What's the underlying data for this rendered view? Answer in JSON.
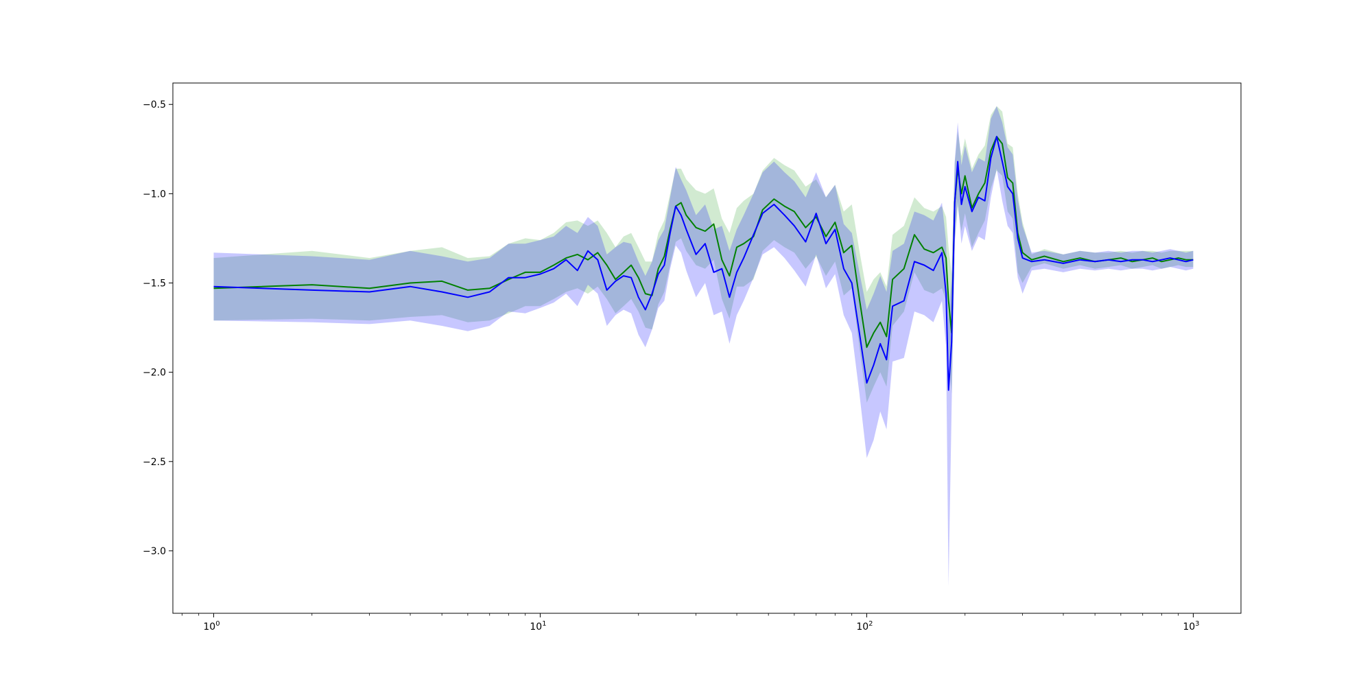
{
  "chart_data": {
    "type": "line",
    "title": "",
    "xlabel": "",
    "ylabel": "",
    "x_scale": "log",
    "xlim": [
      0.75,
      1400
    ],
    "ylim": [
      -3.35,
      -0.38
    ],
    "grid": false,
    "x_ticks": [
      {
        "value": 1,
        "base": "10",
        "exp": "0"
      },
      {
        "value": 10,
        "base": "10",
        "exp": "1"
      },
      {
        "value": 100,
        "base": "10",
        "exp": "2"
      },
      {
        "value": 1000,
        "base": "10",
        "exp": "3"
      }
    ],
    "y_ticks": [
      {
        "value": -0.5,
        "label": "−0.5"
      },
      {
        "value": -1.0,
        "label": "−1.0"
      },
      {
        "value": -1.5,
        "label": "−1.5"
      },
      {
        "value": -2.0,
        "label": "−2.0"
      },
      {
        "value": -2.5,
        "label": "−2.5"
      },
      {
        "value": -3.0,
        "label": "−3.0"
      }
    ],
    "x": [
      1,
      2,
      3,
      4,
      5,
      6,
      7,
      8,
      9,
      10,
      11,
      12,
      13,
      14,
      15,
      16,
      17,
      18,
      19,
      20,
      21,
      22,
      23,
      24,
      25,
      26,
      27,
      28,
      30,
      32,
      34,
      36,
      38,
      40,
      42,
      45,
      48,
      52,
      56,
      60,
      65,
      70,
      75,
      80,
      85,
      90,
      95,
      100,
      105,
      110,
      115,
      120,
      130,
      140,
      150,
      160,
      170,
      175,
      178,
      182,
      186,
      190,
      195,
      200,
      210,
      220,
      230,
      240,
      250,
      260,
      270,
      280,
      290,
      300,
      320,
      350,
      400,
      450,
      500,
      550,
      600,
      650,
      700,
      750,
      800,
      850,
      900,
      950,
      1000
    ],
    "series": [
      {
        "color": "#008000",
        "band_color": "#2ca02c",
        "values": [
          -1.53,
          -1.51,
          -1.53,
          -1.5,
          -1.49,
          -1.54,
          -1.53,
          -1.48,
          -1.44,
          -1.44,
          -1.4,
          -1.36,
          -1.34,
          -1.37,
          -1.33,
          -1.4,
          -1.48,
          -1.44,
          -1.4,
          -1.47,
          -1.56,
          -1.57,
          -1.42,
          -1.35,
          -1.2,
          -1.07,
          -1.05,
          -1.12,
          -1.19,
          -1.21,
          -1.17,
          -1.37,
          -1.46,
          -1.3,
          -1.28,
          -1.24,
          -1.09,
          -1.03,
          -1.07,
          -1.1,
          -1.19,
          -1.13,
          -1.24,
          -1.16,
          -1.33,
          -1.29,
          -1.59,
          -1.86,
          -1.78,
          -1.72,
          -1.8,
          -1.48,
          -1.42,
          -1.23,
          -1.31,
          -1.33,
          -1.3,
          -1.36,
          -1.6,
          -1.78,
          -1.05,
          -0.86,
          -1.0,
          -0.9,
          -1.08,
          -1.0,
          -0.94,
          -0.76,
          -0.68,
          -0.72,
          -0.91,
          -0.94,
          -1.22,
          -1.33,
          -1.37,
          -1.35,
          -1.38,
          -1.36,
          -1.38,
          -1.37,
          -1.36,
          -1.38,
          -1.37,
          -1.36,
          -1.38,
          -1.37,
          -1.36,
          -1.37,
          -1.37
        ],
        "upper": [
          -1.36,
          -1.32,
          -1.36,
          -1.32,
          -1.3,
          -1.36,
          -1.35,
          -1.28,
          -1.25,
          -1.26,
          -1.22,
          -1.16,
          -1.15,
          -1.18,
          -1.15,
          -1.22,
          -1.3,
          -1.24,
          -1.22,
          -1.3,
          -1.38,
          -1.38,
          -1.22,
          -1.15,
          -1.0,
          -0.86,
          -0.86,
          -0.92,
          -0.98,
          -1.0,
          -0.97,
          -1.14,
          -1.22,
          -1.08,
          -1.04,
          -1.0,
          -0.87,
          -0.8,
          -0.84,
          -0.87,
          -0.96,
          -0.92,
          -1.02,
          -0.95,
          -1.1,
          -1.06,
          -1.32,
          -1.55,
          -1.48,
          -1.44,
          -1.52,
          -1.23,
          -1.18,
          -1.02,
          -1.08,
          -1.1,
          -1.07,
          -1.13,
          -1.3,
          -1.45,
          -0.83,
          -0.65,
          -0.79,
          -0.69,
          -0.86,
          -0.78,
          -0.73,
          -0.56,
          -0.51,
          -0.54,
          -0.72,
          -0.74,
          -1.0,
          -1.16,
          -1.34,
          -1.31,
          -1.34,
          -1.32,
          -1.33,
          -1.33,
          -1.32,
          -1.33,
          -1.32,
          -1.32,
          -1.33,
          -1.32,
          -1.32,
          -1.32,
          -1.32
        ],
        "lower": [
          -1.71,
          -1.7,
          -1.71,
          -1.69,
          -1.68,
          -1.72,
          -1.71,
          -1.67,
          -1.63,
          -1.63,
          -1.59,
          -1.55,
          -1.53,
          -1.56,
          -1.52,
          -1.59,
          -1.67,
          -1.63,
          -1.59,
          -1.66,
          -1.75,
          -1.76,
          -1.62,
          -1.55,
          -1.4,
          -1.27,
          -1.25,
          -1.32,
          -1.4,
          -1.42,
          -1.37,
          -1.59,
          -1.7,
          -1.52,
          -1.52,
          -1.48,
          -1.32,
          -1.26,
          -1.3,
          -1.33,
          -1.42,
          -1.35,
          -1.46,
          -1.38,
          -1.57,
          -1.53,
          -1.86,
          -2.17,
          -2.08,
          -2.0,
          -2.08,
          -1.74,
          -1.66,
          -1.44,
          -1.54,
          -1.56,
          -1.53,
          -1.6,
          -1.9,
          -2.12,
          -1.27,
          -1.07,
          -1.21,
          -1.11,
          -1.3,
          -1.22,
          -1.15,
          -0.97,
          -0.87,
          -0.9,
          -1.1,
          -1.14,
          -1.44,
          -1.5,
          -1.41,
          -1.39,
          -1.42,
          -1.4,
          -1.42,
          -1.41,
          -1.4,
          -1.42,
          -1.41,
          -1.4,
          -1.42,
          -1.41,
          -1.4,
          -1.41,
          -1.41
        ]
      },
      {
        "color": "#0000ff",
        "band_color": "#0000ff",
        "values": [
          -1.52,
          -1.54,
          -1.55,
          -1.52,
          -1.55,
          -1.58,
          -1.55,
          -1.47,
          -1.47,
          -1.45,
          -1.42,
          -1.37,
          -1.43,
          -1.32,
          -1.37,
          -1.54,
          -1.49,
          -1.46,
          -1.47,
          -1.58,
          -1.65,
          -1.56,
          -1.45,
          -1.4,
          -1.22,
          -1.07,
          -1.12,
          -1.2,
          -1.34,
          -1.28,
          -1.44,
          -1.42,
          -1.58,
          -1.44,
          -1.36,
          -1.23,
          -1.11,
          -1.06,
          -1.12,
          -1.18,
          -1.27,
          -1.11,
          -1.28,
          -1.2,
          -1.42,
          -1.5,
          -1.78,
          -2.06,
          -1.96,
          -1.84,
          -1.93,
          -1.63,
          -1.6,
          -1.38,
          -1.4,
          -1.43,
          -1.33,
          -1.56,
          -2.1,
          -1.83,
          -1.05,
          -0.82,
          -1.06,
          -0.96,
          -1.1,
          -1.02,
          -1.04,
          -0.8,
          -0.68,
          -0.82,
          -0.96,
          -1.0,
          -1.25,
          -1.36,
          -1.38,
          -1.37,
          -1.39,
          -1.37,
          -1.38,
          -1.37,
          -1.38,
          -1.37,
          -1.37,
          -1.38,
          -1.37,
          -1.36,
          -1.37,
          -1.38,
          -1.37
        ],
        "upper": [
          -1.33,
          -1.35,
          -1.37,
          -1.32,
          -1.35,
          -1.38,
          -1.36,
          -1.28,
          -1.28,
          -1.26,
          -1.24,
          -1.18,
          -1.22,
          -1.13,
          -1.18,
          -1.34,
          -1.3,
          -1.27,
          -1.28,
          -1.38,
          -1.46,
          -1.38,
          -1.26,
          -1.2,
          -1.02,
          -0.85,
          -0.92,
          -0.98,
          -1.12,
          -1.06,
          -1.2,
          -1.18,
          -1.32,
          -1.2,
          -1.12,
          -1.0,
          -0.88,
          -0.82,
          -0.88,
          -0.93,
          -1.02,
          -0.88,
          -1.02,
          -0.95,
          -1.17,
          -1.22,
          -1.44,
          -1.65,
          -1.56,
          -1.46,
          -1.55,
          -1.32,
          -1.28,
          -1.1,
          -1.12,
          -1.15,
          -1.05,
          -1.27,
          -1.7,
          -1.47,
          -0.82,
          -0.6,
          -0.84,
          -0.73,
          -0.88,
          -0.8,
          -0.82,
          -0.58,
          -0.51,
          -0.6,
          -0.74,
          -0.78,
          -1.03,
          -1.18,
          -1.33,
          -1.32,
          -1.34,
          -1.32,
          -1.33,
          -1.32,
          -1.33,
          -1.32,
          -1.32,
          -1.33,
          -1.32,
          -1.31,
          -1.32,
          -1.33,
          -1.32
        ],
        "lower": [
          -1.71,
          -1.72,
          -1.73,
          -1.71,
          -1.74,
          -1.77,
          -1.74,
          -1.66,
          -1.67,
          -1.64,
          -1.61,
          -1.56,
          -1.63,
          -1.51,
          -1.56,
          -1.74,
          -1.68,
          -1.65,
          -1.67,
          -1.79,
          -1.86,
          -1.76,
          -1.64,
          -1.6,
          -1.42,
          -1.29,
          -1.33,
          -1.43,
          -1.58,
          -1.5,
          -1.68,
          -1.66,
          -1.84,
          -1.68,
          -1.6,
          -1.47,
          -1.34,
          -1.3,
          -1.36,
          -1.43,
          -1.52,
          -1.34,
          -1.53,
          -1.45,
          -1.68,
          -1.78,
          -2.12,
          -2.48,
          -2.38,
          -2.22,
          -2.32,
          -1.94,
          -1.92,
          -1.66,
          -1.68,
          -1.72,
          -1.6,
          -1.86,
          -3.2,
          -2.2,
          -1.28,
          -1.04,
          -1.28,
          -1.18,
          -1.32,
          -1.24,
          -1.26,
          -1.02,
          -0.86,
          -1.04,
          -1.18,
          -1.22,
          -1.47,
          -1.56,
          -1.43,
          -1.42,
          -1.44,
          -1.42,
          -1.43,
          -1.42,
          -1.43,
          -1.42,
          -1.42,
          -1.43,
          -1.42,
          -1.41,
          -1.42,
          -1.43,
          -1.42
        ]
      }
    ]
  }
}
